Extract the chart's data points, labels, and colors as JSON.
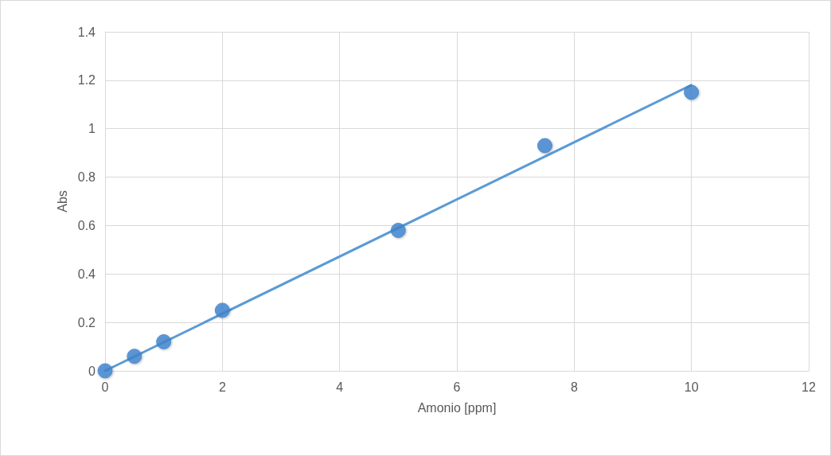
{
  "chart_data": {
    "type": "scatter",
    "xlabel": "Amonio [ppm]",
    "ylabel": "Abs",
    "xlim": [
      0,
      12
    ],
    "xticks": [
      0,
      2,
      4,
      6,
      8,
      10,
      12
    ],
    "ylim": [
      0,
      1.4
    ],
    "yticks": [
      0,
      0.2,
      0.4,
      0.6,
      0.8,
      1,
      1.2,
      1.4
    ],
    "grid": true,
    "marker": "circle",
    "series": [
      {
        "color": "#3d85d0",
        "x": [
          0,
          0.5,
          1,
          2,
          5,
          7.5,
          10
        ],
        "values": [
          0,
          0.06,
          0.12,
          0.25,
          0.58,
          0.93,
          1.15
        ]
      },
      {
        "type": "line",
        "color": "#5b9bd5",
        "marker": "none",
        "line_style": "solid",
        "x": [
          0,
          10
        ],
        "values": [
          0,
          1.18
        ]
      }
    ]
  }
}
